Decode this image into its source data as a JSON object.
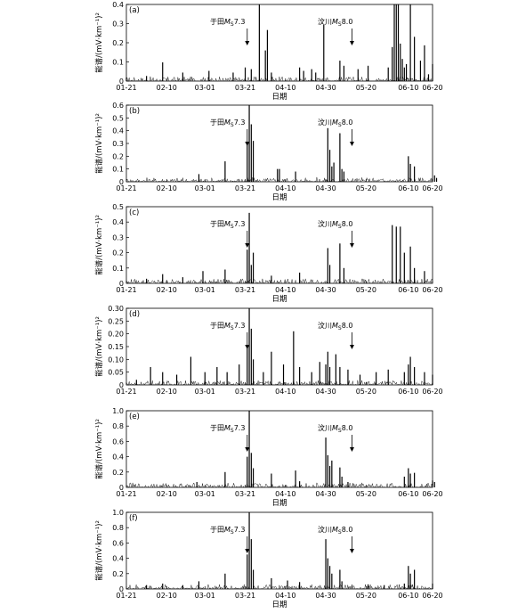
{
  "chart_data": [
    {
      "type": "line",
      "panel": "(a)",
      "xlabel": "日期",
      "ylabel": "能谱/(mV·km⁻¹)²",
      "x_ticks": [
        "01-21",
        "02-10",
        "03-01",
        "03-21",
        "04-10",
        "04-30",
        "05-20",
        "06-10",
        "06-20"
      ],
      "ylim": [
        0,
        0.45
      ],
      "y_ticks": [
        "0",
        "0.1",
        "0.2",
        "0.3",
        "0.4"
      ],
      "annotations": [
        {
          "label": "于田M_S7.3",
          "date": "03-21"
        },
        {
          "label": "汶川M_S8.0",
          "date": "05-12"
        }
      ],
      "series": [
        {
          "x_days": [
            0,
            10,
            18,
            28,
            41,
            53,
            59,
            62,
            66,
            69,
            70,
            72,
            86,
            88,
            92,
            94,
            98,
            106,
            108,
            115,
            120,
            130,
            132,
            133,
            134,
            135,
            136,
            137,
            138,
            139,
            141,
            143,
            146,
            148,
            150,
            152
          ],
          "y": [
            0.02,
            0.03,
            0.11,
            0.05,
            0.06,
            0.05,
            0.08,
            0.07,
            0.45,
            0.18,
            0.3,
            0.05,
            0.08,
            0.06,
            0.07,
            0.05,
            0.33,
            0.12,
            0.09,
            0.07,
            0.09,
            0.08,
            0.2,
            0.45,
            0.45,
            0.45,
            0.22,
            0.13,
            0.08,
            0.1,
            0.45,
            0.26,
            0.12,
            0.21,
            0.04,
            0.1
          ]
        }
      ]
    },
    {
      "type": "line",
      "panel": "(b)",
      "xlabel": "日期",
      "ylabel": "能谱/(mV·km⁻¹)²",
      "x_ticks": [
        "01-21",
        "02-10",
        "03-01",
        "03-21",
        "04-10",
        "04-30",
        "05-20",
        "06-10",
        "06-20"
      ],
      "ylim": [
        0,
        0.6
      ],
      "y_ticks": [
        "0",
        "0.1",
        "0.2",
        "0.3",
        "0.4",
        "0.5",
        "0.6"
      ],
      "annotations": [
        {
          "label": "于田M_S7.3",
          "date": "03-21"
        },
        {
          "label": "汶川M_S8.0",
          "date": "05-12"
        }
      ],
      "series": [
        {
          "x_days": [
            36,
            49,
            60,
            61,
            62,
            63,
            75,
            76,
            84,
            100,
            101,
            102,
            103,
            106,
            107,
            108,
            140,
            141,
            143,
            153,
            154
          ],
          "y": [
            0.06,
            0.16,
            0.3,
            0.6,
            0.45,
            0.32,
            0.1,
            0.1,
            0.08,
            0.42,
            0.25,
            0.12,
            0.15,
            0.38,
            0.1,
            0.08,
            0.2,
            0.14,
            0.12,
            0.05,
            0.03
          ]
        }
      ]
    },
    {
      "type": "line",
      "panel": "(c)",
      "xlabel": "日期",
      "ylabel": "能谱/(mV·km⁻¹)²",
      "x_ticks": [
        "01-21",
        "02-10",
        "03-01",
        "03-21",
        "04-10",
        "04-30",
        "05-20",
        "06-10",
        "06-20"
      ],
      "ylim": [
        0,
        0.5
      ],
      "y_ticks": [
        "0",
        "0.1",
        "0.2",
        "0.3",
        "0.4",
        "0.5"
      ],
      "annotations": [
        {
          "label": "于田M_S7.3",
          "date": "03-21"
        },
        {
          "label": "汶川M_S8.0",
          "date": "05-12"
        }
      ],
      "series": [
        {
          "x_days": [
            10,
            18,
            28,
            38,
            49,
            60,
            61,
            62,
            63,
            72,
            86,
            100,
            101,
            106,
            108,
            132,
            134,
            136,
            138,
            141,
            143,
            148
          ],
          "y": [
            0.03,
            0.06,
            0.04,
            0.08,
            0.09,
            0.22,
            0.46,
            0.12,
            0.2,
            0.05,
            0.07,
            0.23,
            0.12,
            0.26,
            0.1,
            0.38,
            0.37,
            0.37,
            0.2,
            0.24,
            0.1,
            0.08
          ]
        }
      ]
    },
    {
      "type": "line",
      "panel": "(d)",
      "xlabel": "",
      "ylabel": "能谱/(mV·km⁻¹)²",
      "x_ticks": [
        "01-21",
        "02-10",
        "03-01",
        "03-21",
        "04-10",
        "04-30",
        "05-20",
        "06-10",
        "06-20"
      ],
      "ylim": [
        0,
        0.3
      ],
      "y_ticks": [
        "0",
        "0.05",
        "0.10",
        "0.15",
        "0.20",
        "0.25",
        "0.30"
      ],
      "annotations": [
        {
          "label": "于田M_S7.3",
          "date": "03-21"
        },
        {
          "label": "汶川M_S8.0",
          "date": "05-12"
        }
      ],
      "series": [
        {
          "x_days": [
            5,
            12,
            18,
            25,
            32,
            39,
            45,
            50,
            56,
            60,
            61,
            62,
            63,
            68,
            72,
            78,
            83,
            86,
            92,
            96,
            99,
            100,
            101,
            104,
            106,
            110,
            116,
            124,
            130,
            138,
            140,
            141,
            143,
            148,
            152
          ],
          "y": [
            0.02,
            0.07,
            0.05,
            0.04,
            0.11,
            0.05,
            0.07,
            0.05,
            0.08,
            0.15,
            0.3,
            0.22,
            0.1,
            0.05,
            0.13,
            0.08,
            0.21,
            0.07,
            0.05,
            0.09,
            0.08,
            0.13,
            0.07,
            0.12,
            0.07,
            0.06,
            0.04,
            0.05,
            0.06,
            0.05,
            0.08,
            0.11,
            0.07,
            0.05,
            0.04
          ]
        }
      ]
    },
    {
      "type": "line",
      "panel": "(e)",
      "xlabel": "日期",
      "ylabel": "能谱/(mV·km⁻¹)²",
      "x_ticks": [
        "01-21",
        "02-10",
        "03-01",
        "03-21",
        "04-10",
        "04-30",
        "05-20",
        "06-10",
        "06-20"
      ],
      "ylim": [
        0,
        1.0
      ],
      "y_ticks": [
        "0",
        "0.2",
        "0.4",
        "0.6",
        "0.8",
        "1.0"
      ],
      "annotations": [
        {
          "label": "于田M_S7.3",
          "date": "03-21"
        },
        {
          "label": "汶川M_S8.0",
          "date": "05-12"
        }
      ],
      "series": [
        {
          "x_days": [
            35,
            49,
            60,
            61,
            62,
            63,
            72,
            84,
            86,
            99,
            100,
            101,
            102,
            106,
            107,
            110,
            138,
            140,
            141,
            143,
            152,
            153
          ],
          "y": [
            0.07,
            0.2,
            0.4,
            1.0,
            0.45,
            0.25,
            0.18,
            0.22,
            0.08,
            0.65,
            0.42,
            0.28,
            0.35,
            0.26,
            0.14,
            0.07,
            0.14,
            0.25,
            0.18,
            0.19,
            0.09,
            0.07
          ]
        }
      ]
    },
    {
      "type": "line",
      "panel": "(f)",
      "xlabel": "日期",
      "ylabel": "能谱/(mV·km⁻¹)²",
      "x_ticks": [
        "01-21",
        "02-10",
        "03-01",
        "03-21",
        "04-10",
        "04-30",
        "05-20",
        "06-10",
        "06-20"
      ],
      "ylim": [
        0,
        1.0
      ],
      "y_ticks": [
        "0",
        "0.2",
        "0.4",
        "0.6",
        "0.8",
        "1.0"
      ],
      "annotations": [
        {
          "label": "于田M_S7.3",
          "date": "03-21"
        },
        {
          "label": "汶川M_S8.0",
          "date": "05-12"
        }
      ],
      "series": [
        {
          "x_days": [
            10,
            18,
            28,
            36,
            49,
            60,
            61,
            62,
            63,
            72,
            80,
            86,
            99,
            100,
            101,
            102,
            106,
            107,
            120,
            128,
            138,
            140,
            141,
            143,
            152
          ],
          "y": [
            0.05,
            0.07,
            0.05,
            0.1,
            0.2,
            0.45,
            1.0,
            0.65,
            0.25,
            0.14,
            0.11,
            0.09,
            0.65,
            0.4,
            0.3,
            0.2,
            0.25,
            0.1,
            0.06,
            0.05,
            0.07,
            0.3,
            0.2,
            0.25,
            0.07
          ]
        }
      ]
    }
  ]
}
